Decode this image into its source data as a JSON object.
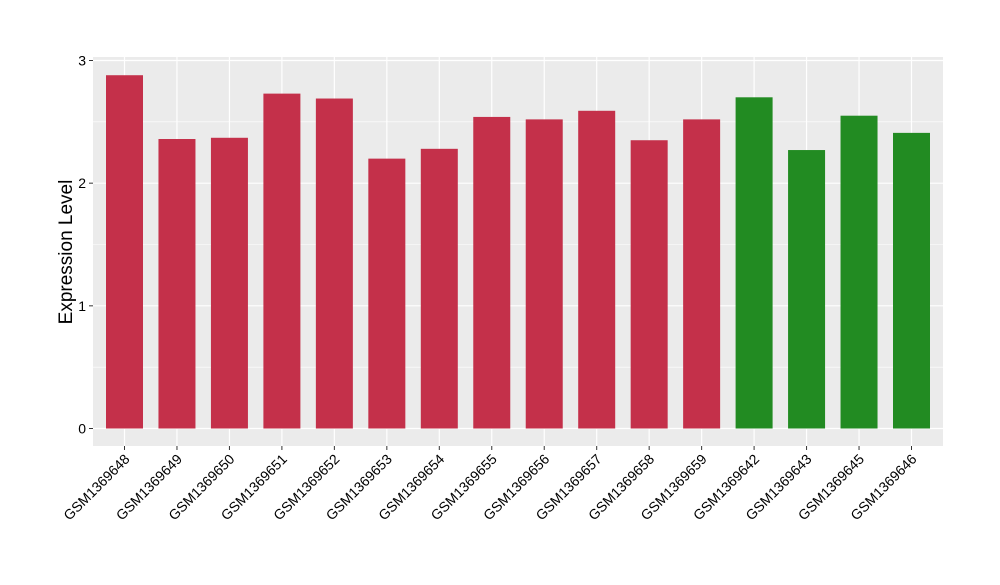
{
  "chart_data": {
    "type": "bar",
    "title": "",
    "xlabel": "",
    "ylabel": "Expression Level",
    "ylim": [
      0,
      3
    ],
    "yticks": [
      0,
      1,
      2,
      3
    ],
    "grid": true,
    "legend": "none",
    "categories": [
      "GSM1369648",
      "GSM1369649",
      "GSM1369650",
      "GSM1369651",
      "GSM1369652",
      "GSM1369653",
      "GSM1369654",
      "GSM1369655",
      "GSM1369656",
      "GSM1369657",
      "GSM1369658",
      "GSM1369659",
      "GSM1369642",
      "GSM1369643",
      "GSM1369645",
      "GSM1369646"
    ],
    "values": [
      2.88,
      2.36,
      2.37,
      2.73,
      2.69,
      2.2,
      2.28,
      2.54,
      2.52,
      2.59,
      2.35,
      2.52,
      2.7,
      2.27,
      2.55,
      2.41
    ],
    "bar_colors": [
      "#C4304A",
      "#C4304A",
      "#C4304A",
      "#C4304A",
      "#C4304A",
      "#C4304A",
      "#C4304A",
      "#C4304A",
      "#C4304A",
      "#C4304A",
      "#C4304A",
      "#C4304A",
      "#228B22",
      "#228B22",
      "#228B22",
      "#228B22"
    ],
    "panel_background": "#EBEBEB",
    "grid_color": "#FFFFFF"
  }
}
